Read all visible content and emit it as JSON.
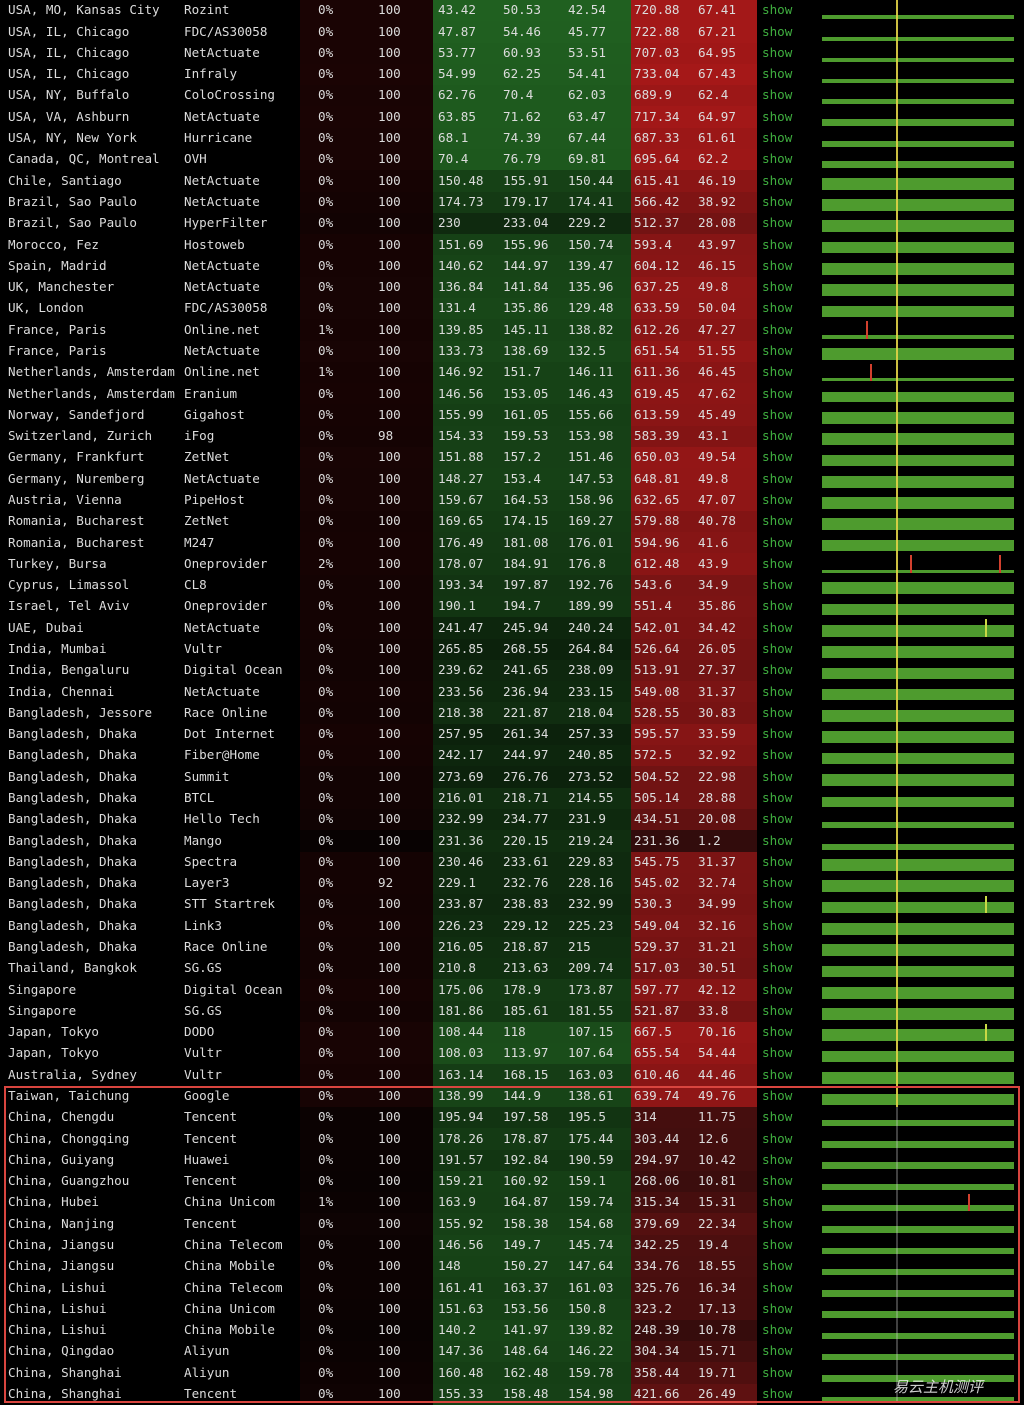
{
  "labels": {
    "show": "show"
  },
  "watermark": "易云主机测评",
  "colors": {
    "text": "#dcdcdc",
    "link": "#3fae3f",
    "bar": "#4e9b2e",
    "reference_mark": "#e3d447",
    "loss_spike": "#d2402e",
    "high_spike": "#c9d845",
    "highlight_box": "#d9453f"
  },
  "rows": [
    {
      "loc": "USA, MO, Kansas City",
      "prov": "Rozint",
      "loss": "0%",
      "sent": "100",
      "v": [
        "43.42",
        "50.53",
        "42.54",
        "720.88",
        "67.41"
      ],
      "level": 0.18
    },
    {
      "loc": "USA, IL, Chicago",
      "prov": "FDC/AS30058",
      "loss": "0%",
      "sent": "100",
      "v": [
        "47.87",
        "54.46",
        "45.77",
        "722.88",
        "67.21"
      ],
      "level": 0.18
    },
    {
      "loc": "USA, IL, Chicago",
      "prov": "NetActuate",
      "loss": "0%",
      "sent": "100",
      "v": [
        "53.77",
        "60.93",
        "53.51",
        "707.03",
        "64.95"
      ],
      "level": 0.2
    },
    {
      "loc": "USA, IL, Chicago",
      "prov": "Infraly",
      "loss": "0%",
      "sent": "100",
      "v": [
        "54.99",
        "62.25",
        "54.41",
        "733.04",
        "67.43"
      ],
      "level": 0.2
    },
    {
      "loc": "USA, NY, Buffalo",
      "prov": "ColoCrossing",
      "loss": "0%",
      "sent": "100",
      "v": [
        "62.76",
        "70.4",
        "62.03",
        "689.9",
        "62.4"
      ],
      "level": 0.25
    },
    {
      "loc": "USA, VA, Ashburn",
      "prov": "NetActuate",
      "loss": "0%",
      "sent": "100",
      "v": [
        "63.85",
        "71.62",
        "63.47",
        "717.34",
        "64.97"
      ],
      "level": 0.3
    },
    {
      "loc": "USA, NY, New York",
      "prov": "Hurricane",
      "loss": "0%",
      "sent": "100",
      "v": [
        "68.1",
        "74.39",
        "67.44",
        "687.33",
        "61.61"
      ],
      "level": 0.3
    },
    {
      "loc": "Canada, QC, Montreal",
      "prov": "OVH",
      "loss": "0%",
      "sent": "100",
      "v": [
        "70.4",
        "76.79",
        "69.81",
        "695.64",
        "62.2"
      ],
      "level": 0.35
    },
    {
      "loc": "Chile, Santiago",
      "prov": "NetActuate",
      "loss": "0%",
      "sent": "100",
      "v": [
        "150.48",
        "155.91",
        "150.44",
        "615.41",
        "46.19"
      ],
      "level": 0.55
    },
    {
      "loc": "Brazil, Sao Paulo",
      "prov": "NetActuate",
      "loss": "0%",
      "sent": "100",
      "v": [
        "174.73",
        "179.17",
        "174.41",
        "566.42",
        "38.92"
      ],
      "level": 0.55
    },
    {
      "loc": "Brazil, Sao Paulo",
      "prov": "HyperFilter",
      "loss": "0%",
      "sent": "100",
      "v": [
        "230",
        "233.04",
        "229.2",
        "512.37",
        "28.08"
      ],
      "level": 0.55
    },
    {
      "loc": "Morocco, Fez",
      "prov": "Hostoweb",
      "loss": "0%",
      "sent": "100",
      "v": [
        "151.69",
        "155.96",
        "150.74",
        "593.4",
        "43.97"
      ],
      "level": 0.55
    },
    {
      "loc": "Spain, Madrid",
      "prov": "NetActuate",
      "loss": "0%",
      "sent": "100",
      "v": [
        "140.62",
        "144.97",
        "139.47",
        "604.12",
        "46.15"
      ],
      "level": 0.55
    },
    {
      "loc": "UK, Manchester",
      "prov": "NetActuate",
      "loss": "0%",
      "sent": "100",
      "v": [
        "136.84",
        "141.84",
        "135.96",
        "637.25",
        "49.8"
      ],
      "level": 0.55
    },
    {
      "loc": "UK, London",
      "prov": "FDC/AS30058",
      "loss": "0%",
      "sent": "100",
      "v": [
        "131.4",
        "135.86",
        "129.48",
        "633.59",
        "50.04"
      ],
      "level": 0.55
    },
    {
      "loc": "France, Paris",
      "prov": "Online.net",
      "loss": "1%",
      "sent": "100",
      "v": [
        "139.85",
        "145.11",
        "138.82",
        "612.26",
        "47.27"
      ],
      "level": 0.15,
      "spikes": [
        {
          "t": 0.23,
          "kind": "loss"
        }
      ]
    },
    {
      "loc": "France, Paris",
      "prov": "NetActuate",
      "loss": "0%",
      "sent": "100",
      "v": [
        "133.73",
        "138.69",
        "132.5",
        "651.54",
        "51.55"
      ],
      "level": 0.55
    },
    {
      "loc": "Netherlands, Amsterdam",
      "prov": "Online.net",
      "loss": "1%",
      "sent": "100",
      "v": [
        "146.92",
        "151.7",
        "146.11",
        "611.36",
        "46.45"
      ],
      "level": 0.15,
      "spikes": [
        {
          "t": 0.25,
          "kind": "loss"
        }
      ]
    },
    {
      "loc": "Netherlands, Amsterdam",
      "prov": "Eranium",
      "loss": "0%",
      "sent": "100",
      "v": [
        "146.56",
        "153.05",
        "146.43",
        "619.45",
        "47.62"
      ],
      "level": 0.5
    },
    {
      "loc": "Norway, Sandefjord",
      "prov": "Gigahost",
      "loss": "0%",
      "sent": "100",
      "v": [
        "155.99",
        "161.05",
        "155.66",
        "613.59",
        "45.49"
      ],
      "level": 0.55
    },
    {
      "loc": "Switzerland, Zurich",
      "prov": "iFog",
      "loss": "0%",
      "sent": "98",
      "v": [
        "154.33",
        "159.53",
        "153.98",
        "583.39",
        "43.1"
      ],
      "level": 0.55
    },
    {
      "loc": "Germany, Frankfurt",
      "prov": "ZetNet",
      "loss": "0%",
      "sent": "100",
      "v": [
        "151.88",
        "157.2",
        "151.46",
        "650.03",
        "49.54"
      ],
      "level": 0.55
    },
    {
      "loc": "Germany, Nuremberg",
      "prov": "NetActuate",
      "loss": "0%",
      "sent": "100",
      "v": [
        "148.27",
        "153.4",
        "147.53",
        "648.81",
        "49.8"
      ],
      "level": 0.55
    },
    {
      "loc": "Austria, Vienna",
      "prov": "PipeHost",
      "loss": "0%",
      "sent": "100",
      "v": [
        "159.67",
        "164.53",
        "158.96",
        "632.65",
        "47.07"
      ],
      "level": 0.55
    },
    {
      "loc": "Romania, Bucharest",
      "prov": "ZetNet",
      "loss": "0%",
      "sent": "100",
      "v": [
        "169.65",
        "174.15",
        "169.27",
        "579.88",
        "40.78"
      ],
      "level": 0.55
    },
    {
      "loc": "Romania, Bucharest",
      "prov": "M247",
      "loss": "0%",
      "sent": "100",
      "v": [
        "176.49",
        "181.08",
        "176.01",
        "594.96",
        "41.6"
      ],
      "level": 0.55
    },
    {
      "loc": "Turkey, Bursa",
      "prov": "Oneprovider",
      "loss": "2%",
      "sent": "100",
      "v": [
        "178.07",
        "184.91",
        "176.8",
        "612.48",
        "43.9"
      ],
      "level": 0.15,
      "spikes": [
        {
          "t": 0.46,
          "kind": "loss"
        },
        {
          "t": 0.92,
          "kind": "loss"
        }
      ]
    },
    {
      "loc": "Cyprus, Limassol",
      "prov": "CL8",
      "loss": "0%",
      "sent": "100",
      "v": [
        "193.34",
        "197.87",
        "192.76",
        "543.6",
        "34.9"
      ],
      "level": 0.55
    },
    {
      "loc": "Israel, Tel Aviv",
      "prov": "Oneprovider",
      "loss": "0%",
      "sent": "100",
      "v": [
        "190.1",
        "194.7",
        "189.99",
        "551.4",
        "35.86"
      ],
      "level": 0.55
    },
    {
      "loc": "UAE, Dubai",
      "prov": "NetActuate",
      "loss": "0%",
      "sent": "100",
      "v": [
        "241.47",
        "245.94",
        "240.24",
        "542.01",
        "34.42"
      ],
      "level": 0.55,
      "spikes": [
        {
          "t": 0.85,
          "kind": "high"
        }
      ]
    },
    {
      "loc": "India, Mumbai",
      "prov": "Vultr",
      "loss": "0%",
      "sent": "100",
      "v": [
        "265.85",
        "268.55",
        "264.84",
        "526.64",
        "26.05"
      ],
      "level": 0.55
    },
    {
      "loc": "India, Bengaluru",
      "prov": "Digital Ocean",
      "loss": "0%",
      "sent": "100",
      "v": [
        "239.62",
        "241.65",
        "238.09",
        "513.91",
        "27.37"
      ],
      "level": 0.55
    },
    {
      "loc": "India, Chennai",
      "prov": "NetActuate",
      "loss": "0%",
      "sent": "100",
      "v": [
        "233.56",
        "236.94",
        "233.15",
        "549.08",
        "31.37"
      ],
      "level": 0.55
    },
    {
      "loc": "Bangladesh, Jessore",
      "prov": "Race Online",
      "loss": "0%",
      "sent": "100",
      "v": [
        "218.38",
        "221.87",
        "218.04",
        "528.55",
        "30.83"
      ],
      "level": 0.55
    },
    {
      "loc": "Bangladesh, Dhaka",
      "prov": "Dot Internet",
      "loss": "0%",
      "sent": "100",
      "v": [
        "257.95",
        "261.34",
        "257.33",
        "595.57",
        "33.59"
      ],
      "level": 0.55
    },
    {
      "loc": "Bangladesh, Dhaka",
      "prov": "Fiber@Home",
      "loss": "0%",
      "sent": "100",
      "v": [
        "242.17",
        "244.97",
        "240.85",
        "572.5",
        "32.92"
      ],
      "level": 0.55
    },
    {
      "loc": "Bangladesh, Dhaka",
      "prov": "Summit",
      "loss": "0%",
      "sent": "100",
      "v": [
        "273.69",
        "276.76",
        "273.52",
        "504.52",
        "22.98"
      ],
      "level": 0.55
    },
    {
      "loc": "Bangladesh, Dhaka",
      "prov": "BTCL",
      "loss": "0%",
      "sent": "100",
      "v": [
        "216.01",
        "218.71",
        "214.55",
        "505.14",
        "28.88"
      ],
      "level": 0.45
    },
    {
      "loc": "Bangladesh, Dhaka",
      "prov": "Hello Tech",
      "loss": "0%",
      "sent": "100",
      "v": [
        "232.99",
        "234.77",
        "231.9",
        "434.51",
        "20.08"
      ],
      "level": 0.3
    },
    {
      "loc": "Bangladesh, Dhaka",
      "prov": "Mango",
      "loss": "0%",
      "sent": "100",
      "v": [
        "231.36",
        "220.15",
        "219.24",
        "231.36",
        "1.2"
      ],
      "level": 0.25
    },
    {
      "loc": "Bangladesh, Dhaka",
      "prov": "Spectra",
      "loss": "0%",
      "sent": "100",
      "v": [
        "230.46",
        "233.61",
        "229.83",
        "545.75",
        "31.37"
      ],
      "level": 0.55
    },
    {
      "loc": "Bangladesh, Dhaka",
      "prov": "Layer3",
      "loss": "0%",
      "sent": "92",
      "v": [
        "229.1",
        "232.76",
        "228.16",
        "545.02",
        "32.74"
      ],
      "level": 0.55
    },
    {
      "loc": "Bangladesh, Dhaka",
      "prov": "STT Startrek",
      "loss": "0%",
      "sent": "100",
      "v": [
        "233.87",
        "238.83",
        "232.99",
        "530.3",
        "34.99"
      ],
      "level": 0.55,
      "spikes": [
        {
          "t": 0.85,
          "kind": "high"
        }
      ]
    },
    {
      "loc": "Bangladesh, Dhaka",
      "prov": "Link3",
      "loss": "0%",
      "sent": "100",
      "v": [
        "226.23",
        "229.12",
        "225.23",
        "549.04",
        "32.16"
      ],
      "level": 0.55
    },
    {
      "loc": "Bangladesh, Dhaka",
      "prov": "Race Online",
      "loss": "0%",
      "sent": "100",
      "v": [
        "216.05",
        "218.87",
        "215",
        "529.37",
        "31.21"
      ],
      "level": 0.55
    },
    {
      "loc": "Thailand, Bangkok",
      "prov": "SG.GS",
      "loss": "0%",
      "sent": "100",
      "v": [
        "210.8",
        "213.63",
        "209.74",
        "517.03",
        "30.51"
      ],
      "level": 0.55
    },
    {
      "loc": "Singapore",
      "prov": "Digital Ocean",
      "loss": "0%",
      "sent": "100",
      "v": [
        "175.06",
        "178.9",
        "173.87",
        "597.77",
        "42.12"
      ],
      "level": 0.55
    },
    {
      "loc": "Singapore",
      "prov": "SG.GS",
      "loss": "0%",
      "sent": "100",
      "v": [
        "181.86",
        "185.61",
        "181.55",
        "521.87",
        "33.8"
      ],
      "level": 0.55
    },
    {
      "loc": "Japan, Tokyo",
      "prov": "DODO",
      "loss": "0%",
      "sent": "100",
      "v": [
        "108.44",
        "118",
        "107.15",
        "667.5",
        "70.16"
      ],
      "level": 0.55,
      "spikes": [
        {
          "t": 0.85,
          "kind": "high"
        }
      ]
    },
    {
      "loc": "Japan, Tokyo",
      "prov": "Vultr",
      "loss": "0%",
      "sent": "100",
      "v": [
        "108.03",
        "113.97",
        "107.64",
        "655.54",
        "54.44"
      ],
      "level": 0.55
    },
    {
      "loc": "Australia, Sydney",
      "prov": "Vultr",
      "loss": "0%",
      "sent": "100",
      "v": [
        "163.14",
        "168.15",
        "163.03",
        "610.46",
        "44.46"
      ],
      "level": 0.55
    },
    {
      "loc": "Taiwan, Taichung",
      "prov": "Google",
      "loss": "0%",
      "sent": "100",
      "v": [
        "138.99",
        "144.9",
        "138.61",
        "639.74",
        "49.76"
      ],
      "level": 0.5
    },
    {
      "loc": "China, Chengdu",
      "prov": "Tencent",
      "loss": "0%",
      "sent": "100",
      "v": [
        "195.94",
        "197.58",
        "195.5",
        "314",
        "11.75"
      ],
      "level": 0.3
    },
    {
      "loc": "China, Chongqing",
      "prov": "Tencent",
      "loss": "0%",
      "sent": "100",
      "v": [
        "178.26",
        "178.87",
        "175.44",
        "303.44",
        "12.6"
      ],
      "level": 0.3
    },
    {
      "loc": "China, Guiyang",
      "prov": "Huawei",
      "loss": "0%",
      "sent": "100",
      "v": [
        "191.57",
        "192.84",
        "190.59",
        "294.97",
        "10.42"
      ],
      "level": 0.3
    },
    {
      "loc": "China, Guangzhou",
      "prov": "Tencent",
      "loss": "0%",
      "sent": "100",
      "v": [
        "159.21",
        "160.92",
        "159.1",
        "268.06",
        "10.81"
      ],
      "level": 0.3
    },
    {
      "loc": "China, Hubei",
      "prov": "China Unicom",
      "loss": "1%",
      "sent": "100",
      "v": [
        "163.9",
        "164.87",
        "159.74",
        "315.34",
        "15.31"
      ],
      "level": 0.3,
      "spikes": [
        {
          "t": 0.76,
          "kind": "loss"
        }
      ]
    },
    {
      "loc": "China, Nanjing",
      "prov": "Tencent",
      "loss": "0%",
      "sent": "100",
      "v": [
        "155.92",
        "158.38",
        "154.68",
        "379.69",
        "22.34"
      ],
      "level": 0.3
    },
    {
      "loc": "China, Jiangsu",
      "prov": "China Telecom",
      "loss": "0%",
      "sent": "100",
      "v": [
        "146.56",
        "149.7",
        "145.74",
        "342.25",
        "19.4"
      ],
      "level": 0.3
    },
    {
      "loc": "China, Jiangsu",
      "prov": "China Mobile",
      "loss": "0%",
      "sent": "100",
      "v": [
        "148",
        "150.27",
        "147.64",
        "334.76",
        "18.55"
      ],
      "level": 0.3
    },
    {
      "loc": "China, Lishui",
      "prov": "China Telecom",
      "loss": "0%",
      "sent": "100",
      "v": [
        "161.41",
        "163.37",
        "161.03",
        "325.76",
        "16.34"
      ],
      "level": 0.3
    },
    {
      "loc": "China, Lishui",
      "prov": "China Unicom",
      "loss": "0%",
      "sent": "100",
      "v": [
        "151.63",
        "153.56",
        "150.8",
        "323.2",
        "17.13"
      ],
      "level": 0.3
    },
    {
      "loc": "China, Lishui",
      "prov": "China Mobile",
      "loss": "0%",
      "sent": "100",
      "v": [
        "140.2",
        "141.97",
        "139.82",
        "248.39",
        "10.78"
      ],
      "level": 0.3
    },
    {
      "loc": "China, Qingdao",
      "prov": "Aliyun",
      "loss": "0%",
      "sent": "100",
      "v": [
        "147.36",
        "148.64",
        "146.22",
        "304.34",
        "15.71"
      ],
      "level": 0.3
    },
    {
      "loc": "China, Shanghai",
      "prov": "Aliyun",
      "loss": "0%",
      "sent": "100",
      "v": [
        "160.48",
        "162.48",
        "159.78",
        "358.44",
        "19.71"
      ],
      "level": 0.3
    },
    {
      "loc": "China, Shanghai",
      "prov": "Tencent",
      "loss": "0%",
      "sent": "100",
      "v": [
        "155.33",
        "158.48",
        "154.98",
        "421.66",
        "26.49"
      ],
      "level": 0.3
    }
  ]
}
